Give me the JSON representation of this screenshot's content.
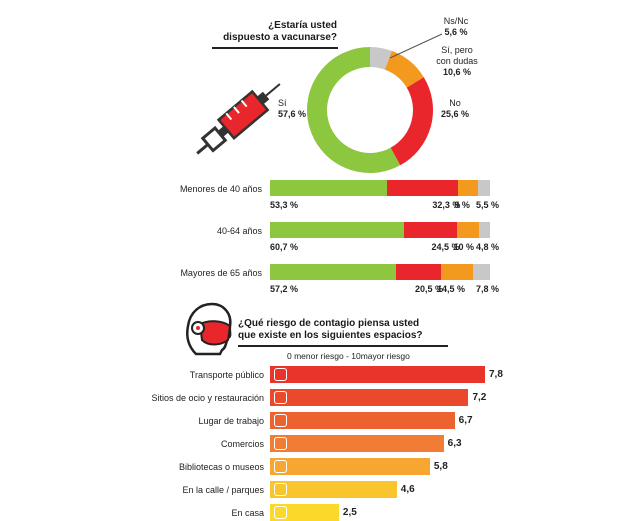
{
  "colors": {
    "green": "#8dc63f",
    "red": "#e8262b",
    "orange": "#f39a1e",
    "grey": "#c8c8c8"
  },
  "question1": {
    "line1": "¿Estaría usted",
    "line2": "dispuesto a vacunarse?"
  },
  "donut": {
    "labels": {
      "nsnc_name": "Ns/Nc",
      "nsnc_val": "5,6 %",
      "dudas_name1": "Sí, pero",
      "dudas_name2": "con dudas",
      "dudas_val": "10,6 %",
      "no_name": "No",
      "no_val": "25,6 %",
      "si_name": "Sí",
      "si_val": "57,6 %"
    }
  },
  "age_groups": [
    {
      "label": "Menores de 40 años",
      "values_text": [
        "53,3 %",
        "32,3 %",
        "9 %",
        "5,5 %"
      ]
    },
    {
      "label": "40-64 años",
      "values_text": [
        "60,7 %",
        "24,5 %",
        "10 %",
        "4,8 %"
      ]
    },
    {
      "label": "Mayores de 65 años",
      "values_text": [
        "57,2 %",
        "20,5 %",
        "14,5 %",
        "7,8 %"
      ]
    }
  ],
  "question2": {
    "line1": "¿Qué riesgo de contagio piensa usted",
    "line2": "que existe en los siguientes espacios?",
    "scale": "0 menor riesgo - 10mayor riesgo"
  },
  "risk": [
    {
      "label": "Transporte público",
      "value_text": "7,8"
    },
    {
      "label": "Sitios de ocio y restauración",
      "value_text": "7,2"
    },
    {
      "label": "Lugar de trabajo",
      "value_text": "6,7"
    },
    {
      "label": "Comercios",
      "value_text": "6,3"
    },
    {
      "label": "Bibliotecas o museos",
      "value_text": "5,8"
    },
    {
      "label": "En la calle / parques",
      "value_text": "4,6"
    },
    {
      "label": "En casa",
      "value_text": "2,5"
    }
  ],
  "chart_data": [
    {
      "type": "pie",
      "title": "¿Estaría usted dispuesto a vacunarse?",
      "categories": [
        "Sí",
        "No",
        "Sí, pero con dudas",
        "Ns/Nc"
      ],
      "values": [
        57.6,
        25.6,
        10.6,
        5.6
      ]
    },
    {
      "type": "bar",
      "categories": [
        "Menores de 40 años",
        "40-64 años",
        "Mayores de 65 años"
      ],
      "series": [
        {
          "name": "Sí",
          "values": [
            53.3,
            60.7,
            57.2
          ]
        },
        {
          "name": "No",
          "values": [
            32.3,
            24.5,
            20.5
          ]
        },
        {
          "name": "Sí, pero con dudas",
          "values": [
            9,
            10,
            14.5
          ]
        },
        {
          "name": "Ns/Nc",
          "values": [
            5.5,
            4.8,
            7.8
          ]
        }
      ]
    },
    {
      "type": "bar",
      "title": "¿Qué riesgo de contagio piensa usted que existe en los siguientes espacios?",
      "subtitle": "0 menor riesgo - 10mayor riesgo",
      "categories": [
        "Transporte público",
        "Sitios de ocio y restauración",
        "Lugar de trabajo",
        "Comercios",
        "Bibliotecas o museos",
        "En la calle / parques",
        "En casa"
      ],
      "values": [
        7.8,
        7.2,
        6.7,
        6.3,
        5.8,
        4.6,
        2.5
      ],
      "ylim": [
        0,
        10
      ]
    }
  ]
}
